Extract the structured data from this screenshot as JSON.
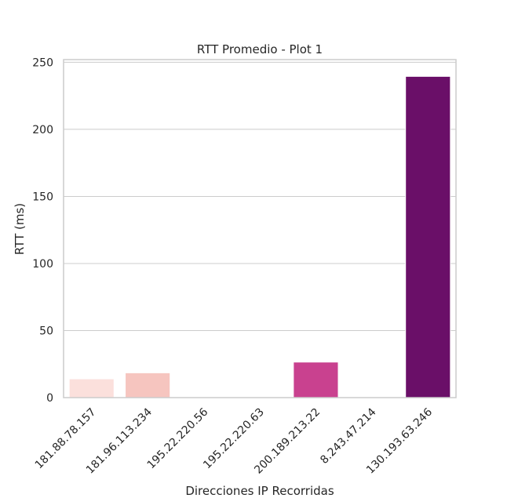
{
  "chart_data": {
    "type": "bar",
    "title": "RTT Promedio - Plot 1",
    "xlabel": "Direcciones IP Recorridas",
    "ylabel": "RTT (ms)",
    "categories": [
      "181.88.78.157",
      "181.96.113.234",
      "195.22.220.56",
      "195.22.220.63",
      "200.189.213.22",
      "8.243.47.214",
      "130.193.63.246"
    ],
    "values": [
      14,
      18.5,
      0,
      0,
      26.5,
      0,
      239.5
    ],
    "bar_colors": [
      "#fbe0dc",
      "#f6c5bf",
      "#f5aaa8",
      "#ef7fa0",
      "#c9418f",
      "#9b1679",
      "#6a0f68"
    ],
    "ylim": [
      0,
      252
    ],
    "yticks": [
      0,
      50,
      100,
      150,
      200,
      250
    ],
    "grid": true,
    "grid_color": "#cccccc",
    "spine_color": "#cccccc"
  }
}
